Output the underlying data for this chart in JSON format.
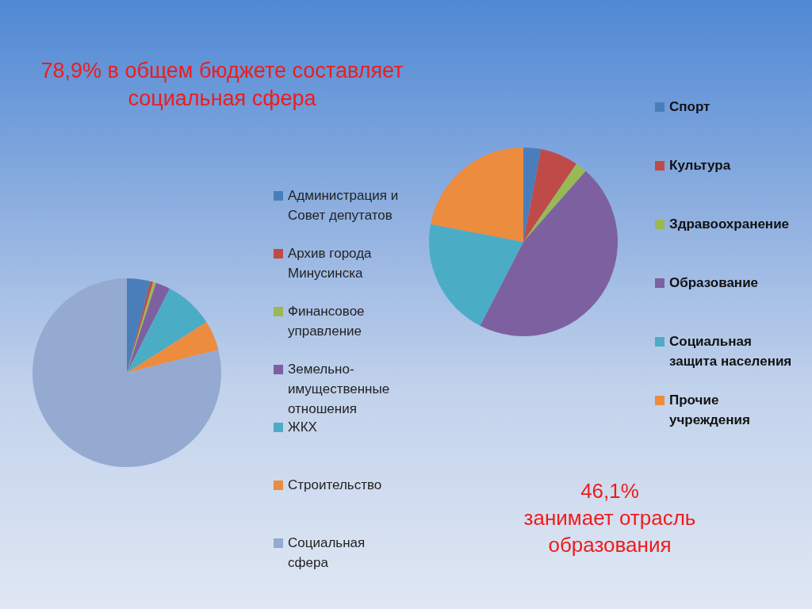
{
  "chart_data": [
    {
      "type": "pie",
      "title": "78,9% в общем бюджете составляет социальная сфера",
      "categories": [
        "Администрация и Совет депутатов",
        "Архив города Минусинска",
        "Финансовое управление",
        "Земельно-имущественные отношения",
        "ЖКХ",
        "Строительство",
        "Социальная сфера"
      ],
      "values": [
        4,
        0.5,
        0.5,
        2.5,
        8.5,
        5.1,
        78.9
      ],
      "colors": [
        "#4a7ebb",
        "#be4b48",
        "#98b954",
        "#7d60a0",
        "#4bacc6",
        "#eb8c3f",
        "#94aad0"
      ],
      "legend": "right"
    },
    {
      "type": "pie",
      "categories": [
        "Спорт",
        "Культура",
        "Здравоохранение",
        "Образование",
        "Социальная защита населения",
        "Прочие учреждения"
      ],
      "values": [
        3,
        6.5,
        2,
        46.1,
        20.4,
        22
      ],
      "colors": [
        "#4a7ebb",
        "#be4b48",
        "#98b954",
        "#7d60a0",
        "#4bacc6",
        "#eb8c3f"
      ],
      "legend": "right",
      "annotations": [
        "46,1% занимает отрасль образования"
      ]
    }
  ]
}
